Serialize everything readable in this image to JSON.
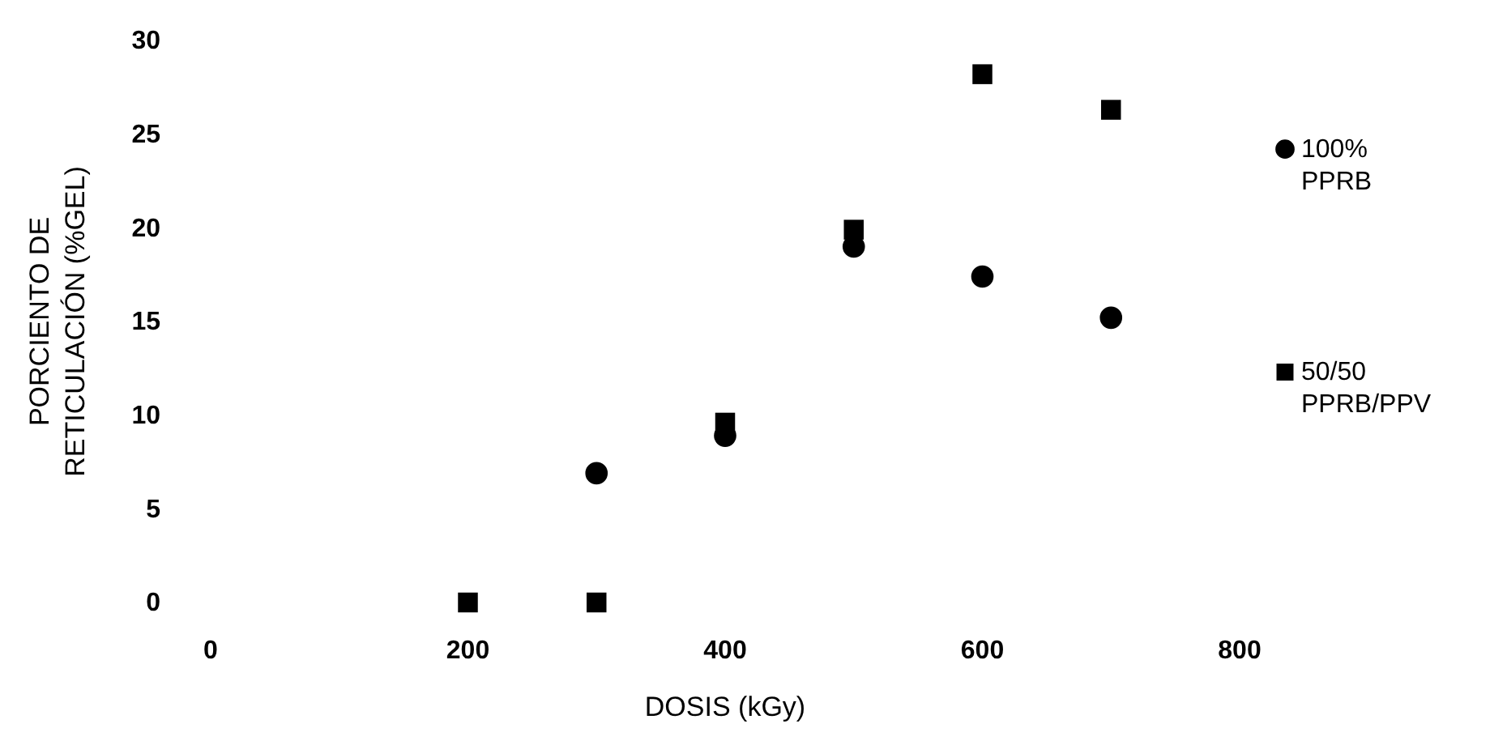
{
  "chart_data": {
    "type": "scatter",
    "xlabel": "DOSIS (kGy)",
    "ylabel": "PORCIENTO DE RETICULACIÓN (%GEL)",
    "x": [
      200,
      300,
      400,
      500,
      600,
      700
    ],
    "series": [
      {
        "name": "100% PPRB",
        "color": "#000000",
        "marker": "circle",
        "values": [
          null,
          6.9,
          8.9,
          19.0,
          17.4,
          15.2
        ]
      },
      {
        "name": "50/50 PPRB/PPV",
        "color": "#000000",
        "marker": "square",
        "values": [
          0,
          0,
          9.6,
          19.9,
          28.2,
          26.3
        ]
      }
    ],
    "xlim": [
      0,
      800
    ],
    "xticks": [
      0,
      200,
      400,
      600,
      800
    ],
    "ylim": [
      0,
      30
    ],
    "yticks": [
      0,
      5,
      10,
      15,
      20,
      25,
      30
    ],
    "grid": false,
    "legend": "right"
  }
}
